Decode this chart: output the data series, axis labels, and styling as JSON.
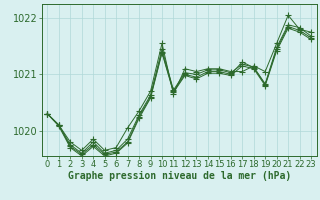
{
  "xlabel": "Graphe pression niveau de la mer (hPa)",
  "x": [
    0,
    1,
    2,
    3,
    4,
    5,
    6,
    7,
    8,
    9,
    10,
    11,
    12,
    13,
    14,
    15,
    16,
    17,
    18,
    19,
    20,
    21,
    22,
    23
  ],
  "series": [
    [
      1020.3,
      1020.1,
      1019.8,
      1019.65,
      1019.85,
      1019.65,
      1019.7,
      1020.05,
      1020.35,
      1020.7,
      1021.55,
      1020.65,
      1021.1,
      1021.05,
      1021.1,
      1021.1,
      1021.05,
      1021.05,
      1021.15,
      1021.05,
      1021.55,
      1022.05,
      1021.8,
      1021.75
    ],
    [
      1020.3,
      1020.1,
      1019.75,
      1019.6,
      1019.8,
      1019.6,
      1019.65,
      1019.85,
      1020.28,
      1020.63,
      1021.45,
      1020.72,
      1021.03,
      1021.0,
      1021.08,
      1021.08,
      1021.03,
      1021.18,
      1021.13,
      1020.83,
      1021.48,
      1021.88,
      1021.83,
      1021.68
    ],
    [
      1020.3,
      1020.1,
      1019.72,
      1019.58,
      1019.75,
      1019.58,
      1019.62,
      1019.8,
      1020.25,
      1020.6,
      1021.4,
      1020.7,
      1021.0,
      1020.95,
      1021.05,
      1021.05,
      1021.0,
      1021.22,
      1021.12,
      1020.82,
      1021.45,
      1021.85,
      1021.78,
      1021.65
    ],
    [
      1020.3,
      1020.08,
      1019.7,
      1019.55,
      1019.72,
      1019.55,
      1019.6,
      1019.78,
      1020.22,
      1020.58,
      1021.38,
      1020.68,
      1020.98,
      1020.92,
      1021.02,
      1021.02,
      1020.98,
      1021.15,
      1021.1,
      1020.8,
      1021.42,
      1021.82,
      1021.75,
      1021.62
    ]
  ],
  "line_color": "#2d6a2d",
  "marker": "+",
  "marker_size": 4,
  "bg_color": "#d9f0f0",
  "grid_color": "#b0d8d8",
  "ylim": [
    1019.55,
    1022.25
  ],
  "yticks": [
    1020,
    1021,
    1022
  ],
  "xlim": [
    -0.5,
    23.5
  ],
  "tick_fontsize": 6,
  "xlabel_fontsize": 7,
  "axis_color": "#2d6a2d",
  "spine_color": "#2d6a2d"
}
